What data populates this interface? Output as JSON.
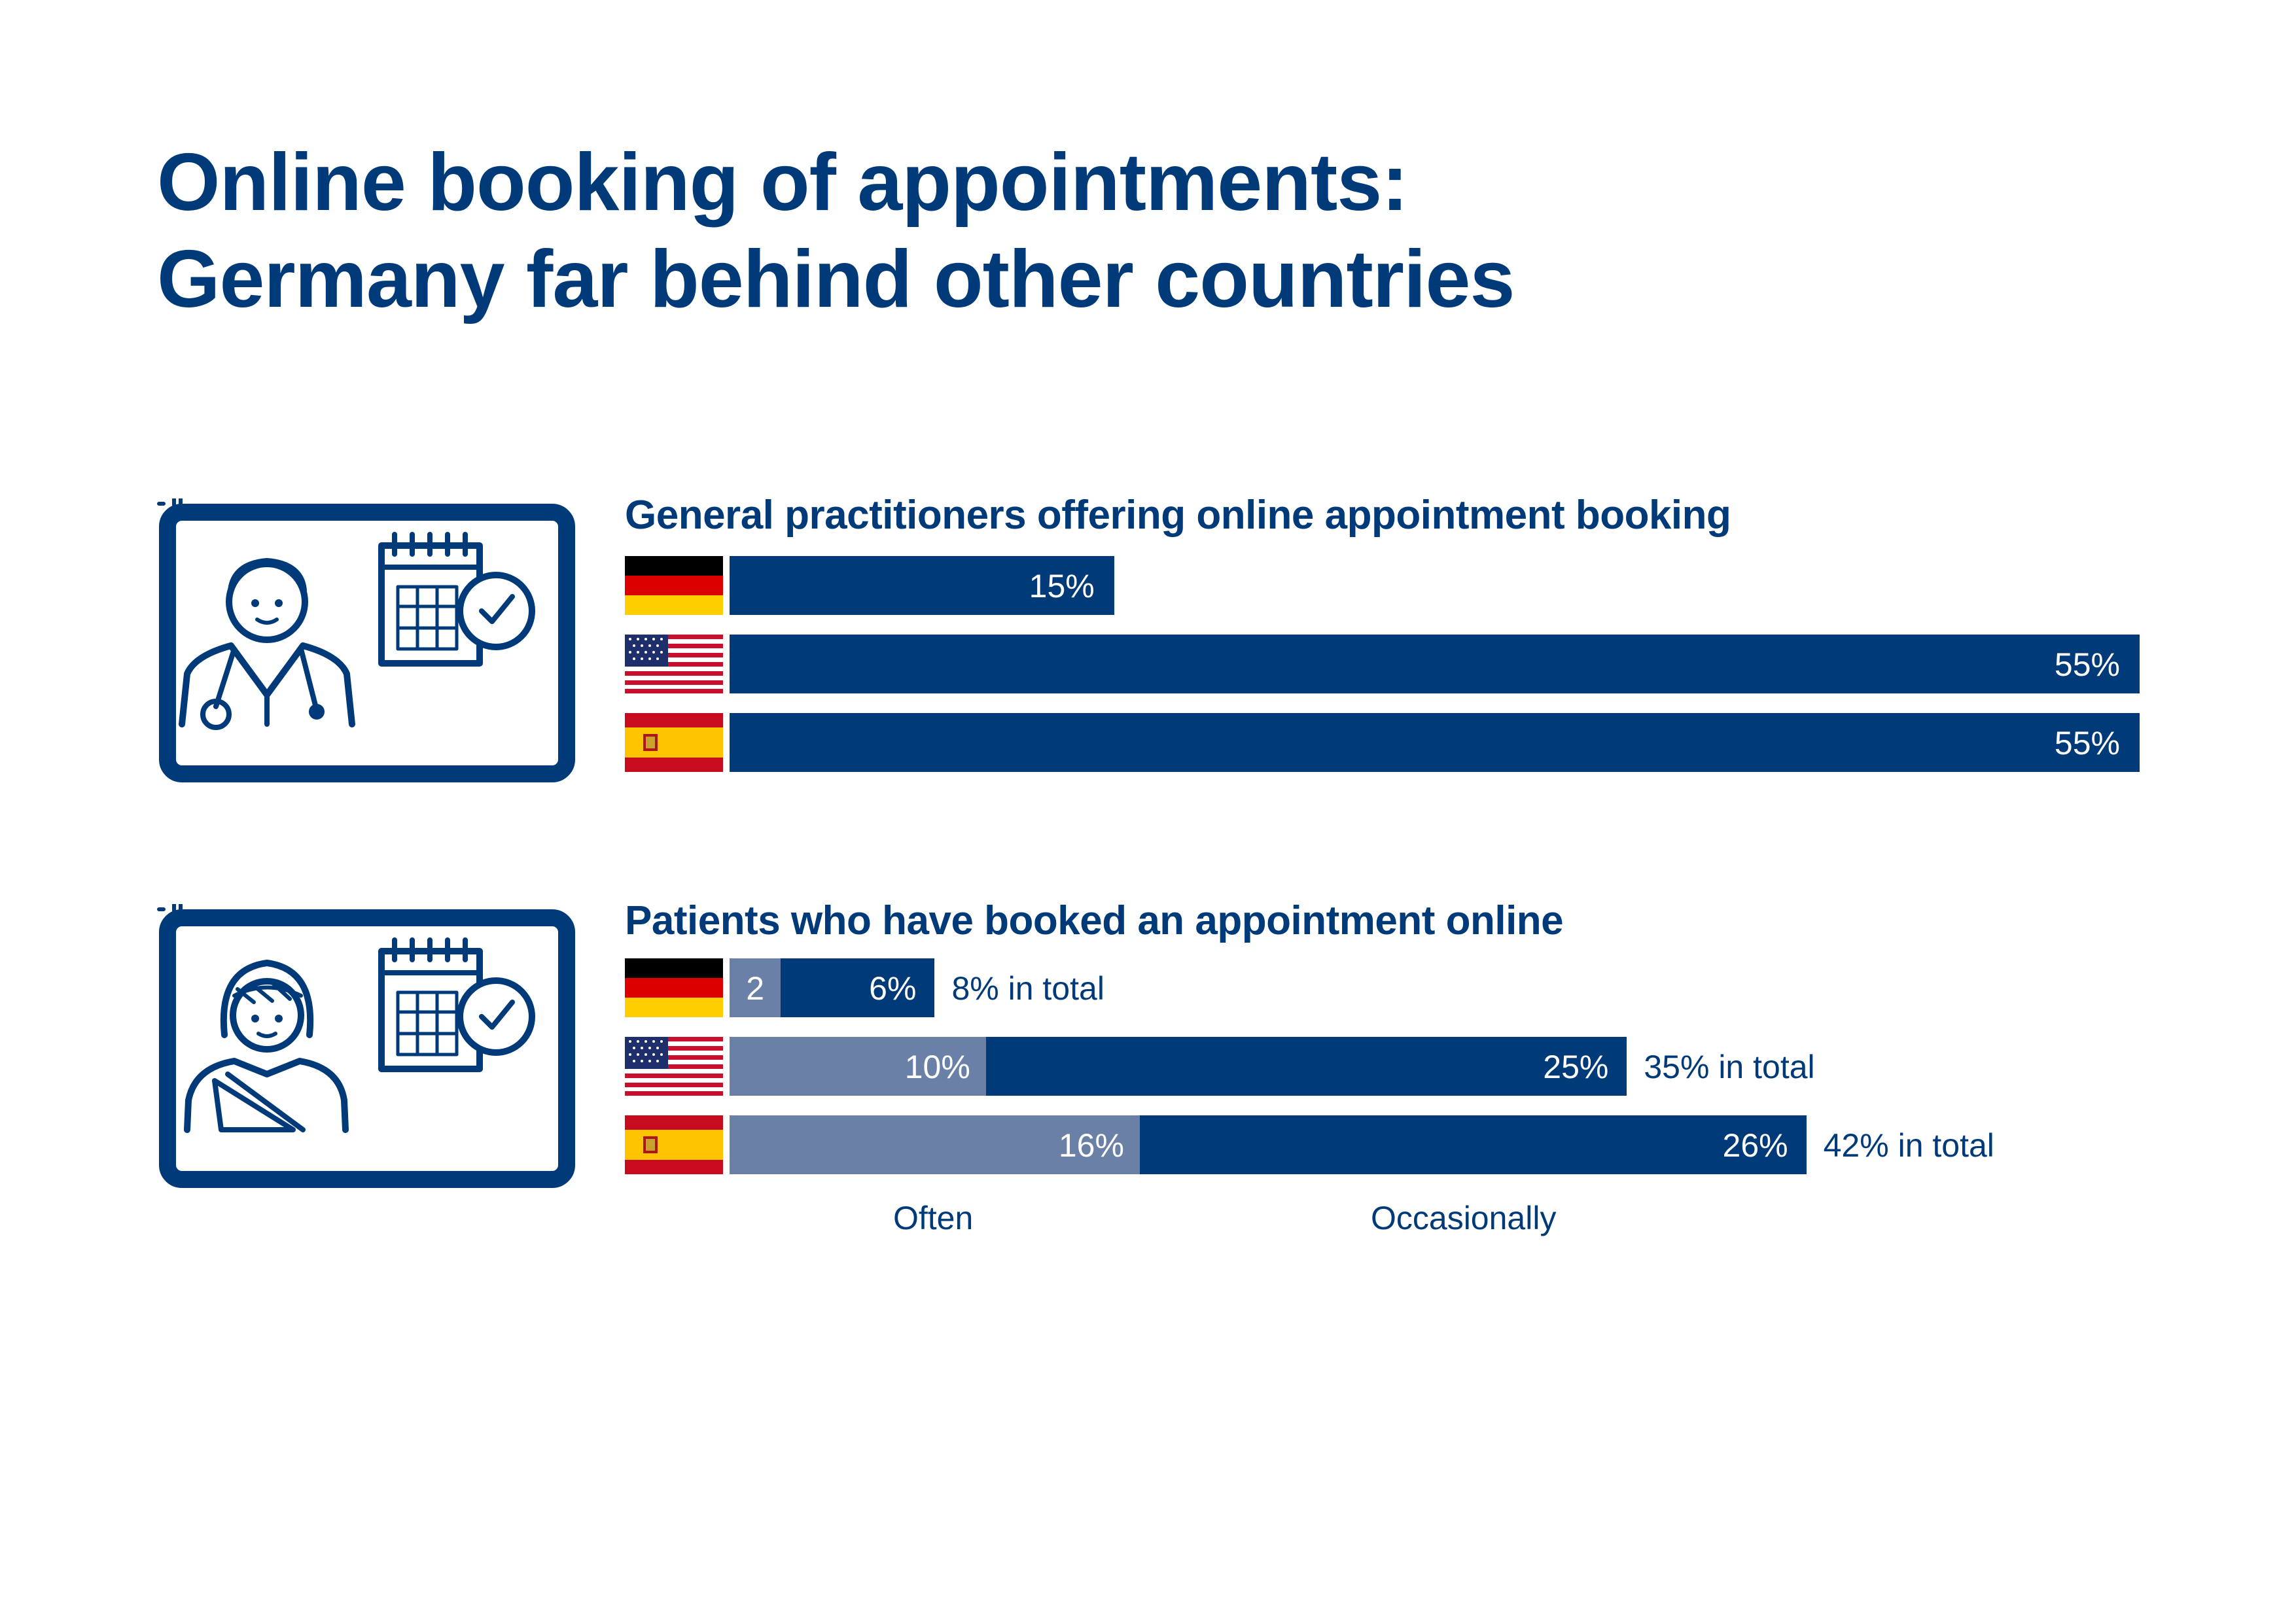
{
  "title": {
    "line1": "Online booking of appointments:",
    "line2": "Germany far behind other countries"
  },
  "colors": {
    "navy": "#003a78",
    "often": "#6a80a6",
    "white": "#ffffff"
  },
  "icons": {
    "section1": "doctor-calendar-icon",
    "section2": "patient-calendar-icon",
    "flags": [
      "germany-flag-icon",
      "usa-flag-icon",
      "spain-flag-icon"
    ]
  },
  "chart_data": [
    {
      "type": "bar",
      "orientation": "horizontal",
      "title": "General practitioners offering online appointment booking",
      "categories": [
        "Germany",
        "USA",
        "Spain"
      ],
      "values": [
        15,
        55,
        55
      ],
      "value_labels": [
        "15%",
        "55%",
        "55%"
      ],
      "xlim": [
        0,
        55
      ]
    },
    {
      "type": "bar",
      "orientation": "horizontal",
      "stacked": true,
      "title": "Patients who have booked an appointment online",
      "categories": [
        "Germany",
        "USA",
        "Spain"
      ],
      "series": [
        {
          "name": "Often",
          "values": [
            2,
            10,
            16
          ],
          "value_labels": [
            "2",
            "10%",
            "16%"
          ],
          "color": "#6a80a6"
        },
        {
          "name": "Occasionally",
          "values": [
            6,
            25,
            26
          ],
          "value_labels": [
            "6%",
            "25%",
            "26%"
          ],
          "color": "#003a78"
        }
      ],
      "totals": [
        8,
        35,
        42
      ],
      "total_labels": [
        "8% in total",
        "35% in total",
        "42% in total"
      ],
      "xlim": [
        0,
        55
      ],
      "legend": [
        "Often",
        "Occasionally"
      ]
    }
  ]
}
